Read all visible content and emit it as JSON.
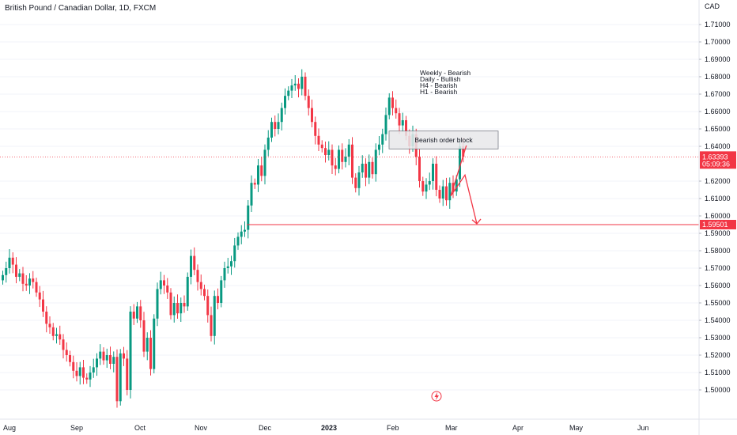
{
  "header": {
    "title": "British Pound / Canadian Dollar, 1D, FXCM"
  },
  "colors": {
    "bull": "#089981",
    "bear": "#f23645",
    "axis_text": "#131722",
    "grid": "#f0f3fa",
    "price_tag": "#f23645",
    "block_fill": "#e8e8ea",
    "block_stroke": "#787b86"
  },
  "chart_data": {
    "type": "candlestick",
    "currency": "CAD",
    "y_ticks": [
      "1.71000",
      "1.70000",
      "1.69000",
      "1.68000",
      "1.67000",
      "1.66000",
      "1.65000",
      "1.64000",
      "1.62000",
      "1.61000",
      "1.60000",
      "1.59000",
      "1.58000",
      "1.57000",
      "1.56000",
      "1.55000",
      "1.54000",
      "1.53000",
      "1.52000",
      "1.51000",
      "1.50000"
    ],
    "x_labels": [
      "Aug",
      "Sep",
      "Oct",
      "Nov",
      "Dec",
      "2023",
      "Feb",
      "Mar",
      "Apr",
      "May",
      "Jun"
    ],
    "ylim": [
      1.4935,
      1.7205
    ],
    "current_price": "1.63393",
    "countdown": "05:09:36",
    "target_price": "1.59501",
    "order_block": {
      "label": "Bearish order block",
      "price_low": 1.6385,
      "price_high": 1.6488
    },
    "bias_notes": [
      "Weekly - Bearish",
      "Daily - Bullish",
      "H4 - Bearish",
      "H1 - Bearish"
    ],
    "projection": [
      [
        1.6405,
        1.6115
      ],
      [
        1.6235,
        1.5955
      ]
    ],
    "event_icon": "lightning-icon",
    "closes": [
      1.566,
      1.57,
      1.576,
      1.572,
      1.565,
      1.567,
      1.561,
      1.56,
      1.564,
      1.562,
      1.556,
      1.552,
      1.545,
      1.538,
      1.536,
      1.531,
      1.532,
      1.529,
      1.523,
      1.52,
      1.516,
      1.511,
      1.508,
      1.513,
      1.507,
      1.506,
      1.51,
      1.513,
      1.518,
      1.522,
      1.517,
      1.52,
      1.515,
      1.519,
      1.4935,
      1.521,
      1.518,
      1.5,
      1.545,
      1.541,
      1.548,
      1.54,
      1.522,
      1.53,
      1.512,
      1.541,
      1.558,
      1.563,
      1.56,
      1.556,
      1.543,
      1.55,
      1.544,
      1.55,
      1.548,
      1.565,
      1.577,
      1.569,
      1.562,
      1.558,
      1.554,
      1.543,
      1.531,
      1.554,
      1.55,
      1.563,
      1.57,
      1.571,
      1.574,
      1.583,
      1.588,
      1.591,
      1.592,
      1.606,
      1.619,
      1.618,
      1.629,
      1.623,
      1.638,
      1.645,
      1.654,
      1.65,
      1.654,
      1.662,
      1.669,
      1.672,
      1.675,
      1.676,
      1.673,
      1.68,
      1.669,
      1.662,
      1.654,
      1.646,
      1.641,
      1.639,
      1.635,
      1.638,
      1.629,
      1.627,
      1.638,
      1.631,
      1.634,
      1.641,
      1.622,
      1.616,
      1.625,
      1.63,
      1.622,
      1.631,
      1.624,
      1.638,
      1.641,
      1.647,
      1.658,
      1.668,
      1.662,
      1.659,
      1.652,
      1.655,
      1.646,
      1.64,
      1.647,
      1.634,
      1.62,
      1.614,
      1.618,
      1.62,
      1.63,
      1.615,
      1.61,
      1.617,
      1.609,
      1.619,
      1.614,
      1.621,
      1.64,
      1.6339
    ]
  }
}
